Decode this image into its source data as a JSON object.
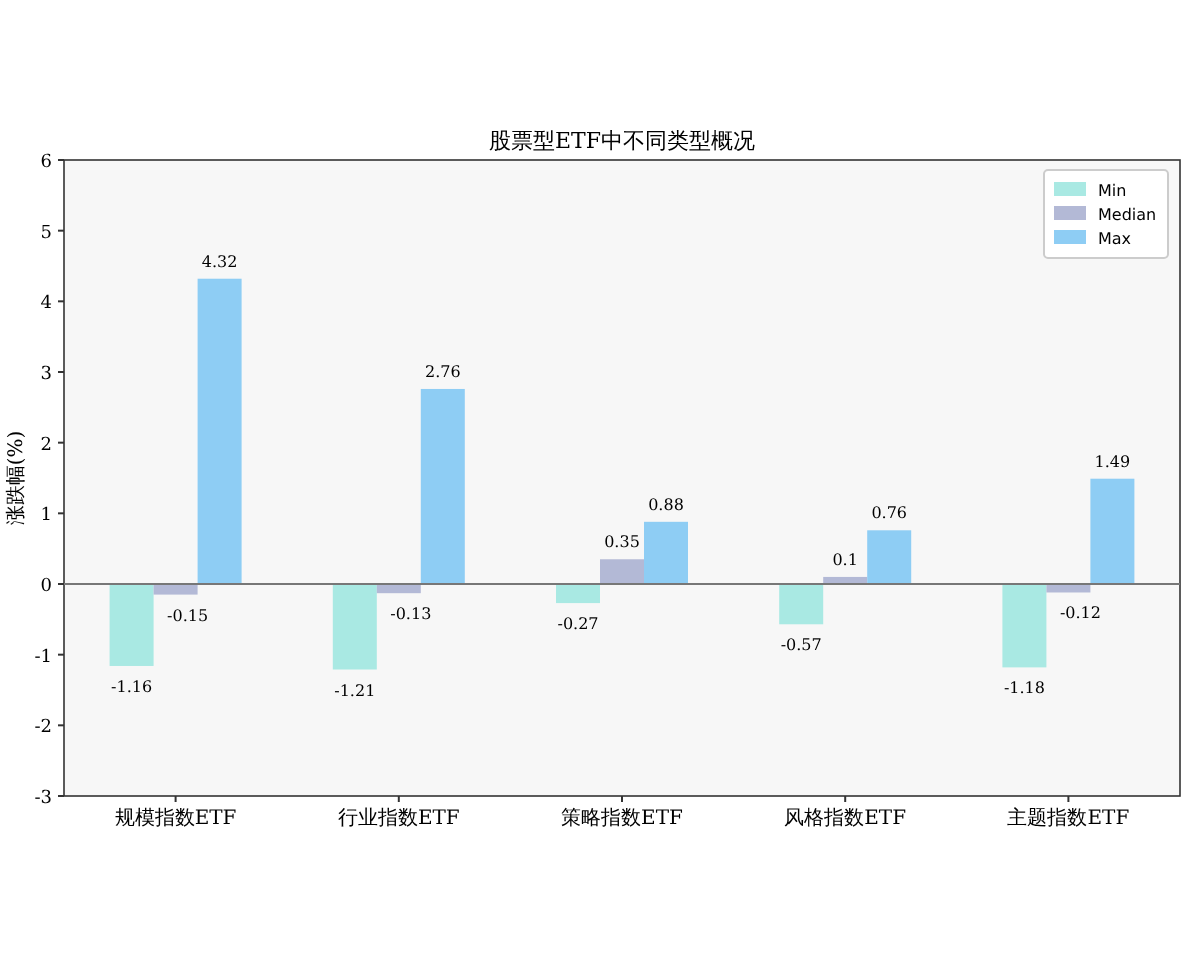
{
  "chart_data": {
    "type": "bar",
    "title": "股票型ETF中不同类型概况",
    "ylabel": "涨跌幅(%)",
    "categories": [
      "规模指数ETF",
      "行业指数ETF",
      "策略指数ETF",
      "风格指数ETF",
      "主题指数ETF"
    ],
    "series": [
      {
        "name": "Min",
        "color": "#a9e9e3",
        "values": [
          -1.16,
          -1.21,
          -0.27,
          -0.57,
          -1.18
        ]
      },
      {
        "name": "Median",
        "color": "#b3b9d6",
        "values": [
          -0.15,
          -0.13,
          0.35,
          0.1,
          -0.12
        ]
      },
      {
        "name": "Max",
        "color": "#8ecdf4",
        "values": [
          4.32,
          2.76,
          0.88,
          0.76,
          1.49
        ]
      }
    ],
    "ylim": [
      -3,
      6
    ],
    "yticks": [
      -3,
      -2,
      -1,
      0,
      1,
      2,
      3,
      4,
      5,
      6
    ],
    "ref_lines": [
      {
        "axis": "y",
        "value": 0,
        "color": "#777777"
      }
    ],
    "data_labels": true,
    "legend": "top right",
    "grid": false
  }
}
